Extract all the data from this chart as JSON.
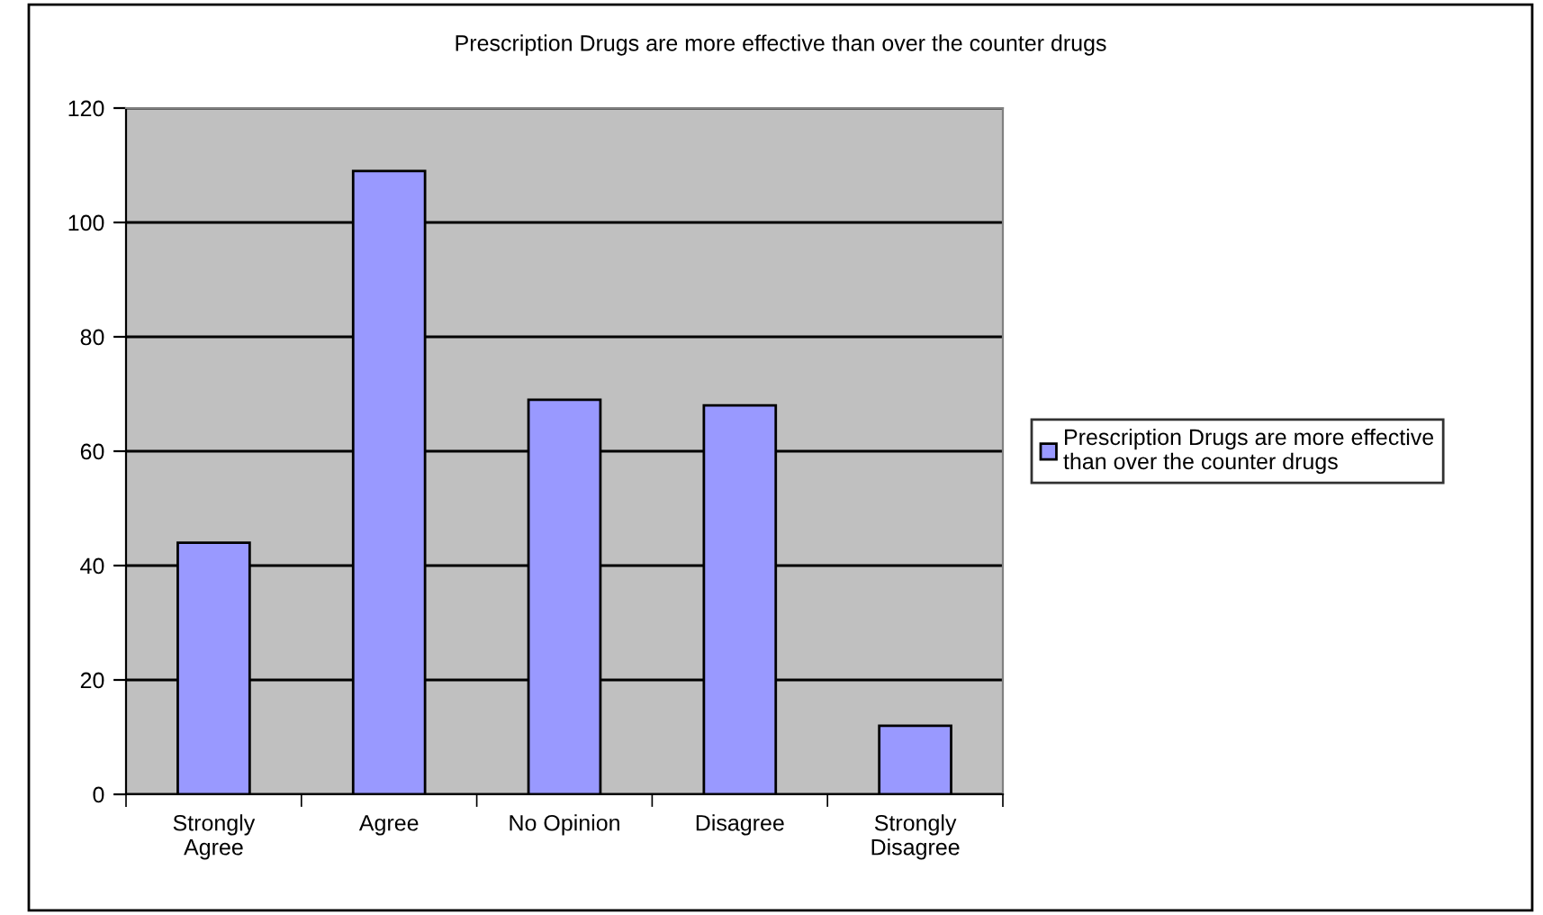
{
  "chart_data": {
    "type": "bar",
    "title": "Prescription Drugs are more effective than over the counter drugs",
    "categories": [
      "Strongly\nAgree",
      "Agree",
      "No Opinion",
      "Disagree",
      "Strongly\nDisagree"
    ],
    "series": [
      {
        "name": "Prescription Drugs are more effective\nthan over the counter drugs",
        "color": "#9999ff",
        "values": [
          44,
          109,
          69,
          68,
          12
        ]
      }
    ],
    "ylim": [
      0,
      120
    ],
    "yticks": [
      0,
      20,
      40,
      60,
      80,
      100,
      120
    ],
    "grid": "y",
    "legend": "right"
  }
}
